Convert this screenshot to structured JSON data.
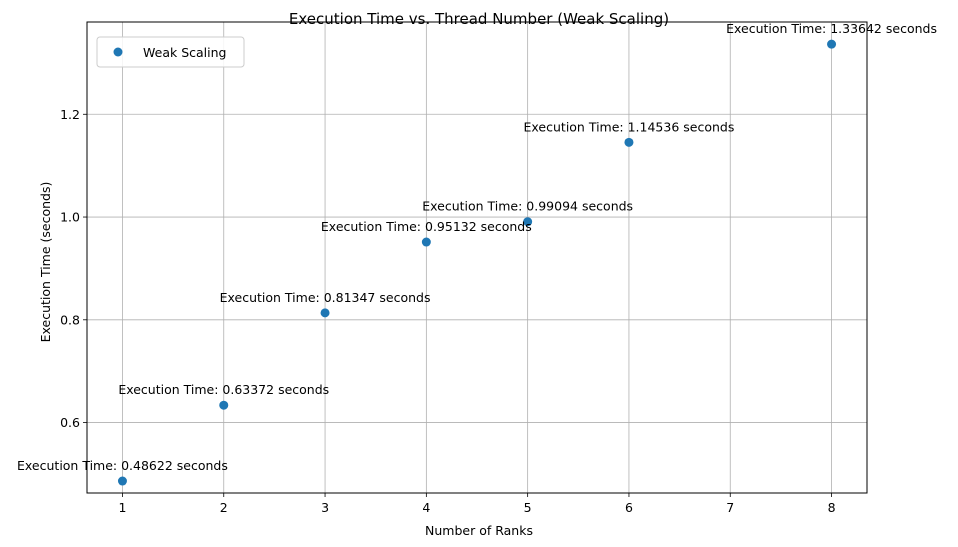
{
  "chart_data": {
    "type": "scatter",
    "title": "Execution Time vs. Thread Number (Weak Scaling)",
    "xlabel": "Number of Ranks",
    "ylabel": "Execution Time (seconds)",
    "xlim": [
      0.65,
      8.35
    ],
    "ylim": [
      0.4629,
      1.3796
    ],
    "xticks": [
      1,
      2,
      3,
      4,
      5,
      6,
      7,
      8
    ],
    "yticks": [
      0.6,
      0.8,
      1.0,
      1.2
    ],
    "ytick_labels": [
      "0.6",
      "0.8",
      "1.0",
      "1.2"
    ],
    "grid": true,
    "legend": {
      "position": "top-left",
      "entries": [
        "Weak Scaling"
      ]
    },
    "series": [
      {
        "name": "Weak Scaling",
        "color": "#1f77b4",
        "marker": "circle",
        "x": [
          1,
          2,
          3,
          4,
          5,
          6,
          8
        ],
        "y": [
          0.48622,
          0.63372,
          0.81347,
          0.95132,
          0.99094,
          1.14536,
          1.33642
        ]
      }
    ],
    "annotations": [
      "Execution Time: 0.48622 seconds",
      "Execution Time: 0.63372 seconds",
      "Execution Time: 0.81347 seconds",
      "Execution Time: 0.95132 seconds",
      "Execution Time: 0.99094 seconds",
      "Execution Time: 1.14536 seconds",
      "Execution Time: 1.33642 seconds"
    ]
  }
}
